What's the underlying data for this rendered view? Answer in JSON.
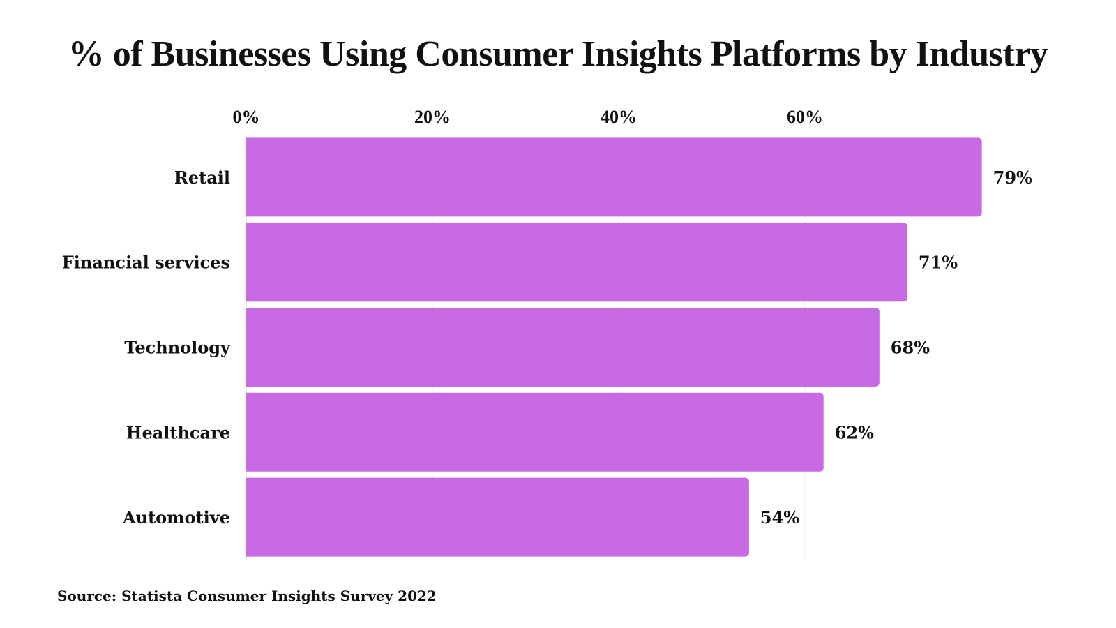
{
  "chart_data": {
    "type": "bar",
    "orientation": "horizontal",
    "title": "% of Businesses Using Consumer Insights Platforms by Industry",
    "categories": [
      "Retail",
      "Financial services",
      "Technology",
      "Healthcare",
      "Automotive"
    ],
    "values": [
      79,
      71,
      68,
      62,
      54
    ],
    "value_labels": [
      "79%",
      "71%",
      "68%",
      "62%",
      "54%"
    ],
    "xlabel": "",
    "ylabel": "",
    "xlim": [
      0,
      79
    ],
    "x_ticks": [
      0,
      20,
      40,
      60
    ],
    "x_tick_labels": [
      "0%",
      "20%",
      "40%",
      "60%"
    ],
    "x_axis_position": "top",
    "grid": true,
    "legend": "none",
    "bar_color": "#C86AE3",
    "source": "Source: Statista Consumer Insights Survey 2022"
  }
}
